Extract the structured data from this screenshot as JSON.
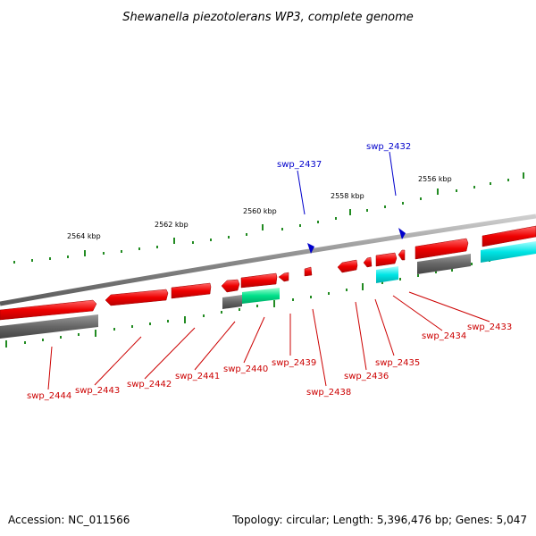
{
  "title": "Shewanella piezotolerans WP3, complete genome",
  "footer": {
    "accession": "Accession: NC_011566",
    "summary": "Topology: circular; Length: 5,396,476 bp; Genes: 5,047"
  },
  "colors": {
    "forward_gene": "#ff0000",
    "cds_gray": "#666666",
    "cds_cyan": "#00e5e5",
    "cds_green": "#00e08a",
    "rna_blue": "#0000cc",
    "label_red": "#cc0000",
    "label_blue": "#0000cc",
    "tick_green": "#228b22",
    "backbone": "#888888"
  },
  "scale_labels": [
    "2564 kbp",
    "2562 kbp",
    "2560 kbp",
    "2558 kbp",
    "2556 kbp"
  ],
  "genes_red": [
    "swp_2444",
    "swp_2443",
    "swp_2442",
    "swp_2441",
    "swp_2440",
    "swp_2439",
    "swp_2438",
    "swp_2436",
    "swp_2435",
    "swp_2434",
    "swp_2433"
  ],
  "genes_blue": [
    "swp_2437",
    "swp_2432"
  ]
}
